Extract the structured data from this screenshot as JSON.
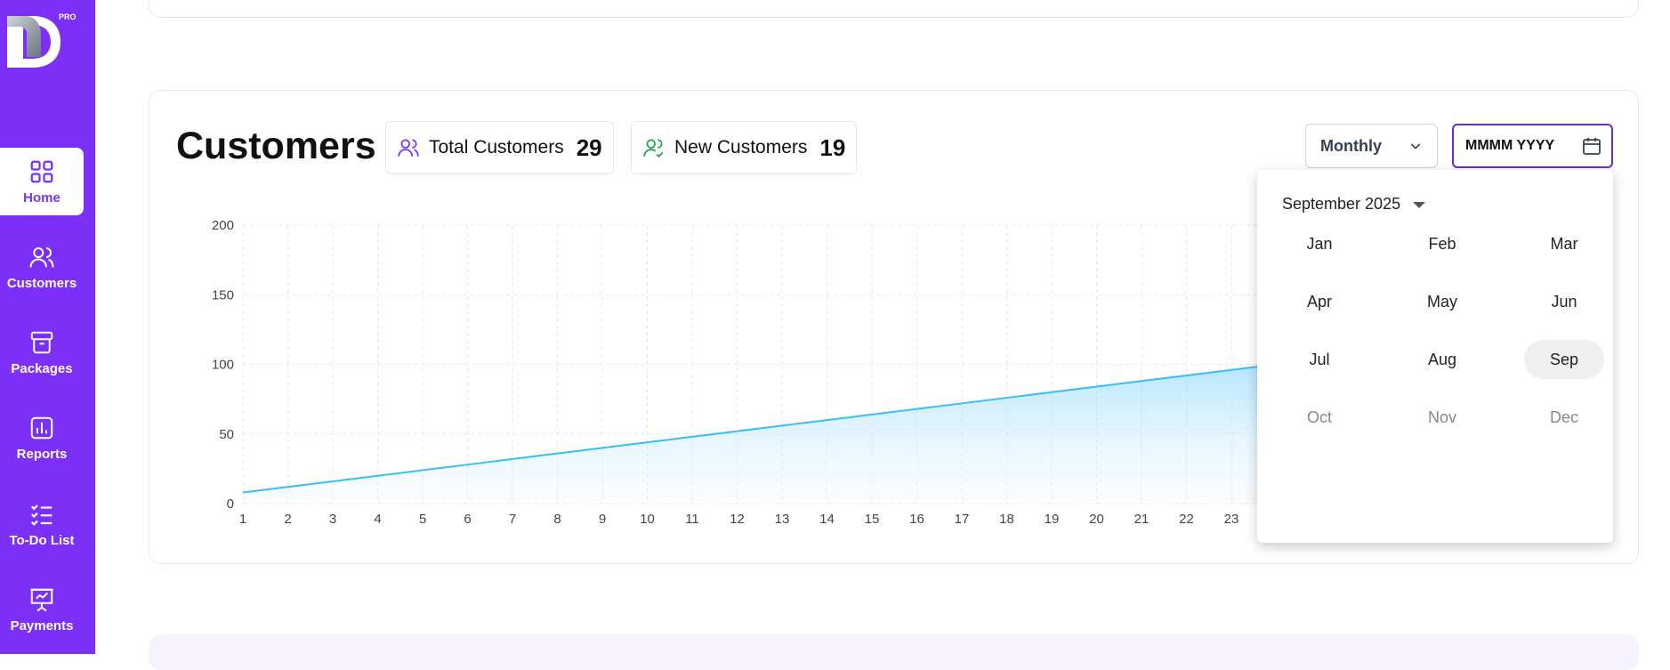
{
  "sidebar": {
    "logo_badge": "PRO",
    "items": [
      {
        "label": "Home",
        "icon": "grid-icon",
        "active": true
      },
      {
        "label": "Customers",
        "icon": "users-icon"
      },
      {
        "label": "Packages",
        "icon": "archive-icon"
      },
      {
        "label": "Reports",
        "icon": "bar-chart-icon"
      },
      {
        "label": "To-Do List",
        "icon": "checklist-icon"
      },
      {
        "label": "Payments",
        "icon": "presentation-chart-icon"
      }
    ]
  },
  "customers_card": {
    "title": "Customers",
    "total": {
      "label": "Total Customers",
      "value": "29"
    },
    "new": {
      "label": "New Customers",
      "value": "19"
    },
    "period_select": "Monthly",
    "date_placeholder": "MMMM YYYY"
  },
  "month_picker": {
    "header": "September 2025",
    "months": [
      {
        "label": "Jan",
        "state": "enabled"
      },
      {
        "label": "Feb",
        "state": "enabled"
      },
      {
        "label": "Mar",
        "state": "enabled"
      },
      {
        "label": "Apr",
        "state": "enabled"
      },
      {
        "label": "May",
        "state": "enabled"
      },
      {
        "label": "Jun",
        "state": "enabled"
      },
      {
        "label": "Jul",
        "state": "enabled"
      },
      {
        "label": "Aug",
        "state": "enabled"
      },
      {
        "label": "Sep",
        "state": "selected"
      },
      {
        "label": "Oct",
        "state": "disabled"
      },
      {
        "label": "Nov",
        "state": "disabled"
      },
      {
        "label": "Dec",
        "state": "disabled"
      }
    ]
  },
  "colors": {
    "sidebar": "#7b2ff7",
    "line": "#38bdf8",
    "accent": "#6d28d9"
  },
  "chart_data": {
    "type": "area",
    "x": [
      "1",
      "2",
      "3",
      "4",
      "5",
      "6",
      "7",
      "8",
      "9",
      "10",
      "11",
      "12",
      "13",
      "14",
      "15",
      "16",
      "17",
      "18",
      "19",
      "20",
      "21",
      "22",
      "23"
    ],
    "series": [
      {
        "values": [
          8,
          12,
          16,
          20,
          24,
          28,
          32,
          36,
          40,
          44,
          48,
          52,
          56,
          60,
          64,
          68,
          72,
          76,
          80,
          84,
          88,
          92,
          96
        ]
      }
    ],
    "yticks": [
      "0",
      "50",
      "100",
      "150",
      "200"
    ],
    "ylim": [
      0,
      200
    ],
    "grid": true
  }
}
